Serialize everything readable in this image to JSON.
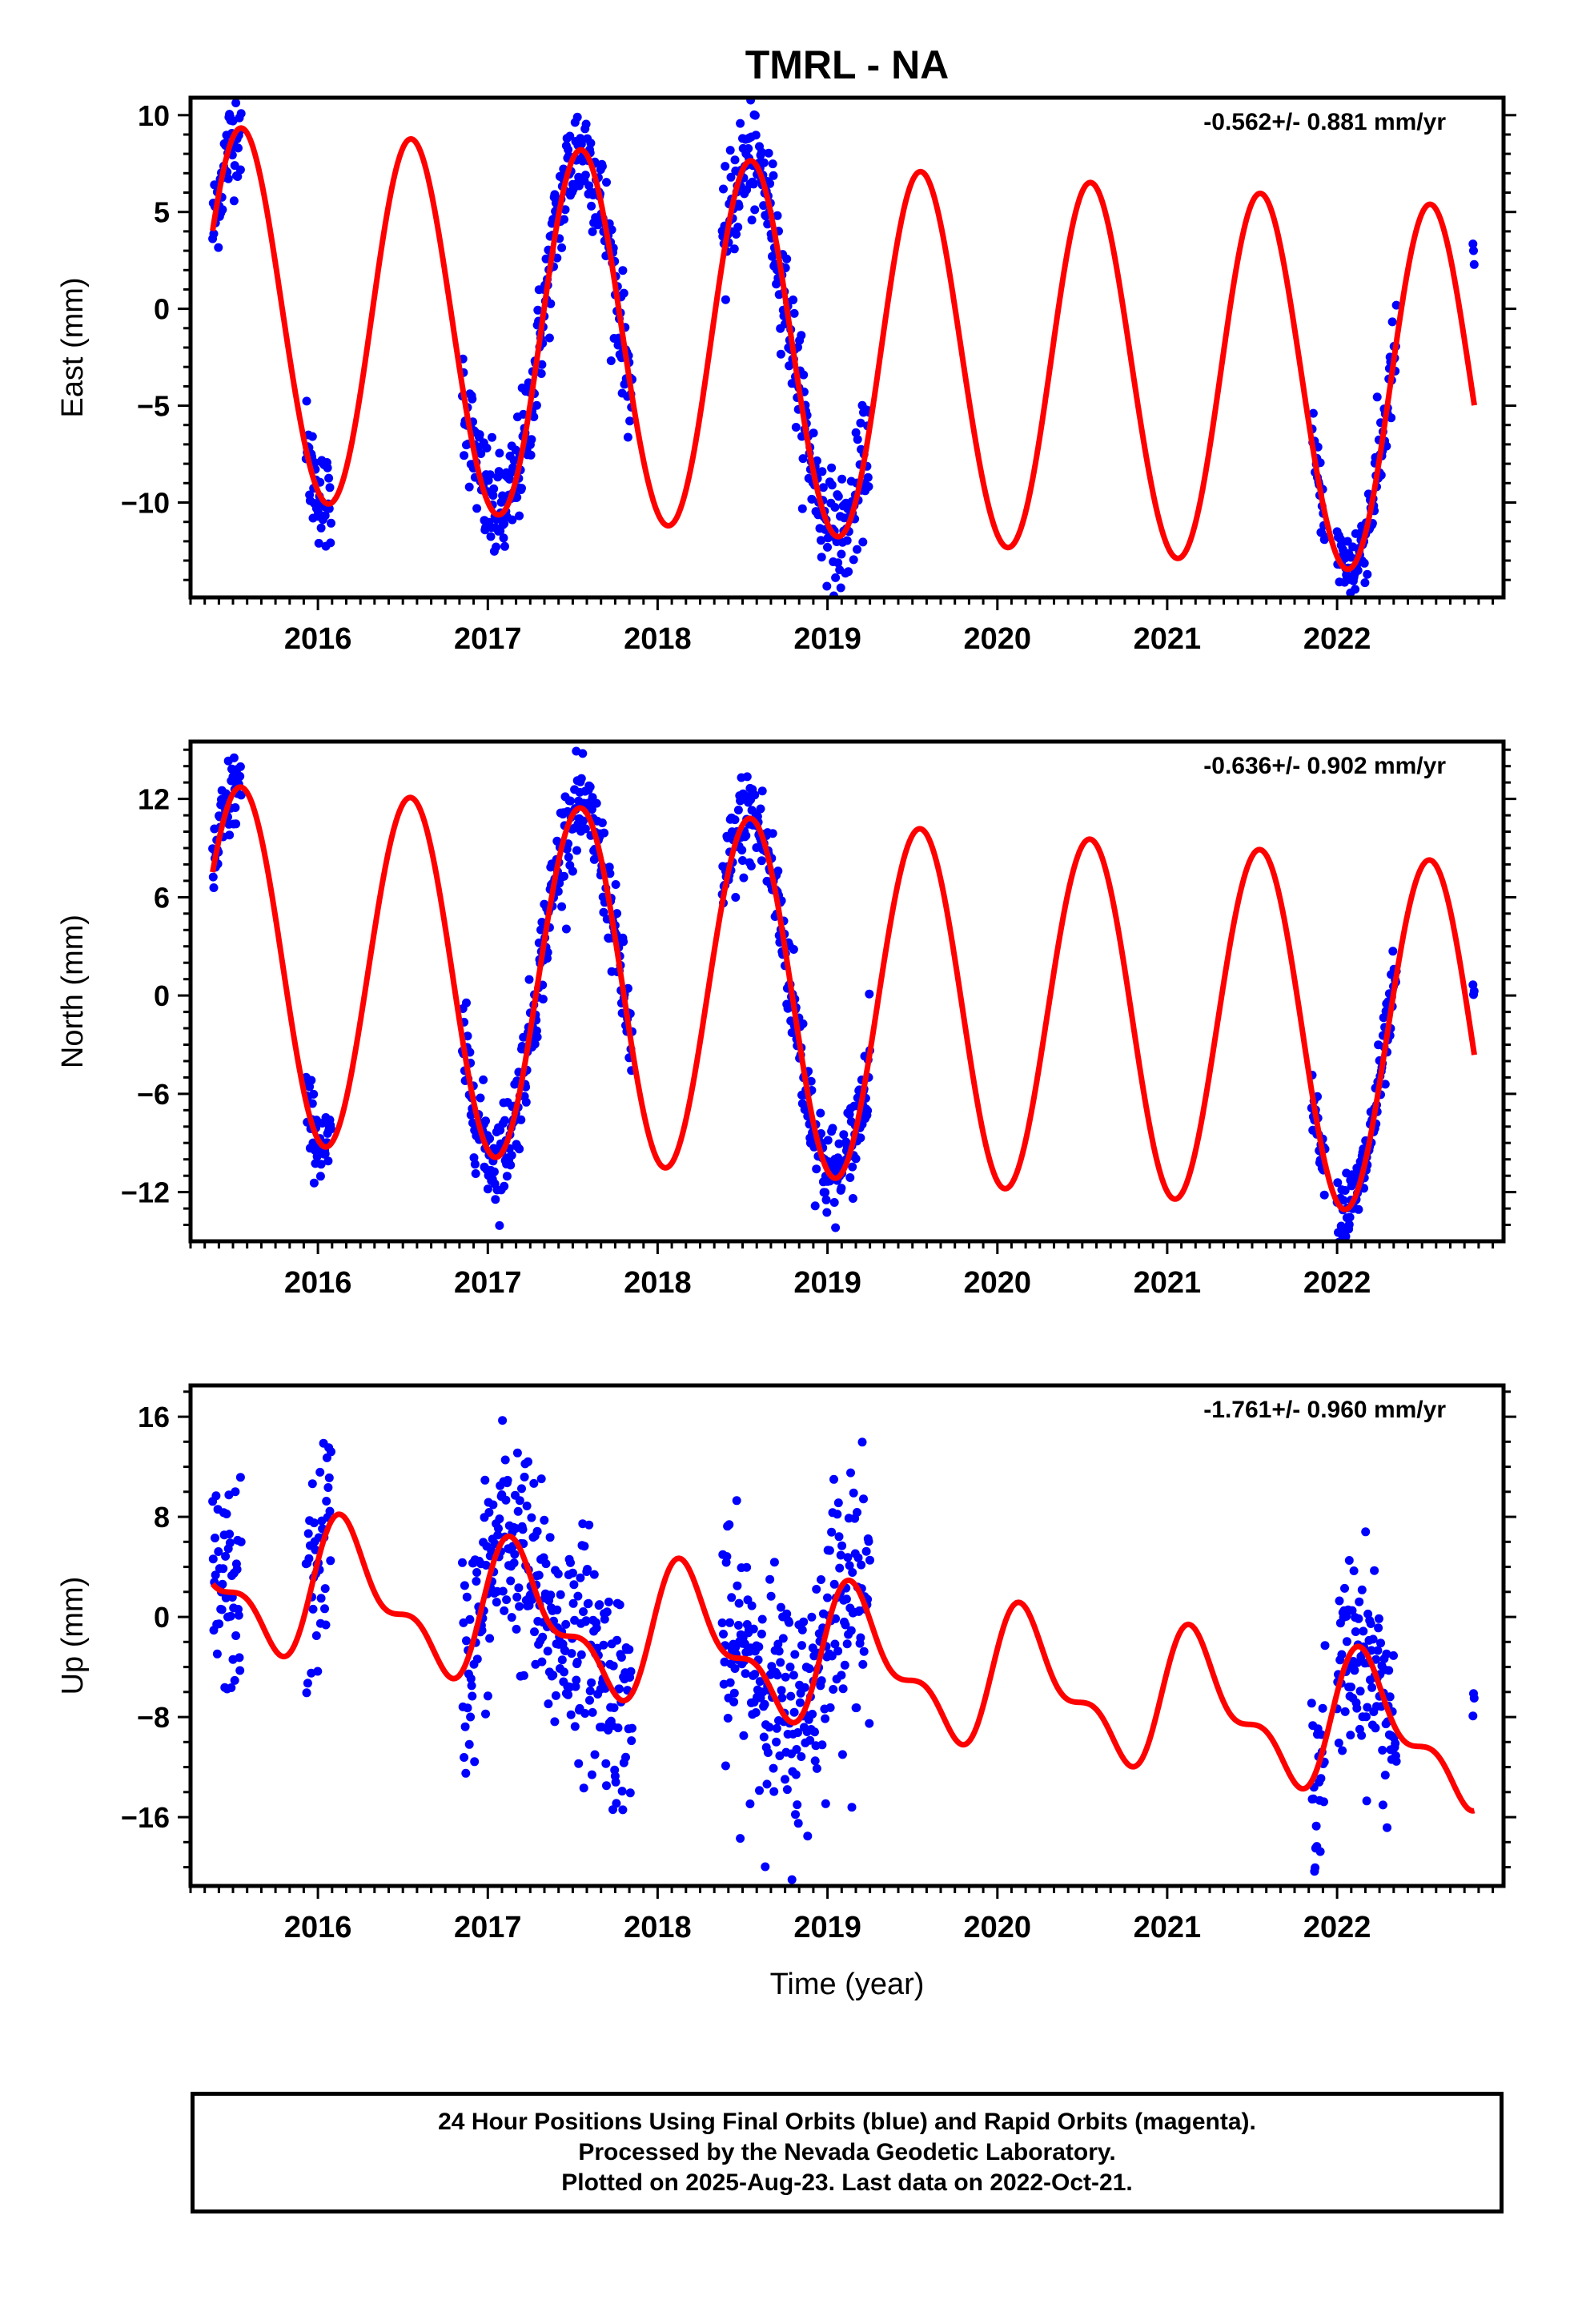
{
  "title": "TMRL - NA",
  "colors": {
    "data": "#0000ff",
    "model": "#ff0000",
    "axis": "#000000"
  },
  "x_ticks": [
    "2016",
    "2017",
    "2018",
    "2019",
    "2020",
    "2021",
    "2022"
  ],
  "xlabel": "Time (year)",
  "caption": [
    "24 Hour Positions Using Final Orbits (blue) and Rapid Orbits (magenta).",
    "Processed by the Nevada Geodetic Laboratory.",
    "Plotted on 2025-Aug-23. Last data on 2022-Oct-21."
  ],
  "chart_data": [
    {
      "type": "scatter",
      "component": "east",
      "ylabel": "East (mm)",
      "rate_label": "-0.562+/- 0.881 mm/yr",
      "xlim": [
        2015.25,
        2022.98
      ],
      "ylim": [
        -14.9,
        10.9
      ],
      "y_ticks": [
        10,
        5,
        0,
        -5,
        -10
      ],
      "y_minor_ticks": [
        9,
        8,
        7,
        6,
        4,
        3,
        2,
        1,
        -1,
        -2,
        -3,
        -4,
        -6,
        -7,
        -8,
        -9,
        -11,
        -12,
        -13,
        -14
      ],
      "model": {
        "offset": -2.4,
        "rate": -0.562,
        "t0": 2019.0,
        "annual_cos": -9.0,
        "annual_sin": -3.2,
        "semiannual_cos": 0.3,
        "semiannual_sin": 0.0,
        "t_start": 2015.38,
        "t_end": 2022.81
      },
      "data_segments": [
        {
          "t": [
            2015.38,
            2015.55
          ],
          "scatter": 1.3
        },
        {
          "t": [
            2015.93,
            2016.08
          ],
          "scatter": 1.3
        },
        {
          "t": [
            2016.85,
            2017.85
          ],
          "scatter": 1.5
        },
        {
          "t": [
            2018.38,
            2019.25
          ],
          "scatter": 1.5
        },
        {
          "t": [
            2021.85,
            2021.93
          ],
          "scatter": 1.0
        },
        {
          "t": [
            2022.0,
            2022.35
          ],
          "scatter": 1.2
        },
        {
          "t": [
            2022.8,
            2022.81
          ],
          "scatter": 0.3,
          "shift": 7.4
        }
      ]
    },
    {
      "type": "scatter",
      "component": "north",
      "ylabel": "North (mm)",
      "rate_label": "-0.636+/- 0.902 mm/yr",
      "xlim": [
        2015.25,
        2022.98
      ],
      "ylim": [
        -15,
        15.5
      ],
      "y_ticks": [
        12,
        6,
        0,
        -6,
        -12
      ],
      "y_minor_ticks": [
        15,
        14,
        13,
        11,
        10,
        9,
        8,
        7,
        5,
        4,
        3,
        2,
        1,
        -1,
        -2,
        -3,
        -4,
        -5,
        -7,
        -8,
        -9,
        -10,
        -11,
        -13,
        -14
      ],
      "model": {
        "offset": -0.3,
        "rate": -0.636,
        "t0": 2019.0,
        "annual_cos": -10.4,
        "annual_sin": -3.0,
        "semiannual_cos": 0.0,
        "semiannual_sin": 0.0,
        "t_start": 2015.38,
        "t_end": 2022.81
      },
      "data_segments": [
        {
          "t": [
            2015.38,
            2015.55
          ],
          "scatter": 1.4
        },
        {
          "t": [
            2015.93,
            2016.08
          ],
          "scatter": 1.2
        },
        {
          "t": [
            2016.85,
            2017.85
          ],
          "scatter": 1.5
        },
        {
          "t": [
            2018.38,
            2019.25
          ],
          "scatter": 1.6
        },
        {
          "t": [
            2021.85,
            2021.93
          ],
          "scatter": 0.8
        },
        {
          "t": [
            2022.0,
            2022.35
          ],
          "scatter": 1.2
        },
        {
          "t": [
            2022.8,
            2022.81
          ],
          "scatter": 0.3,
          "shift": 3.5
        }
      ]
    },
    {
      "type": "scatter",
      "component": "up",
      "ylabel": "Up (mm)",
      "rate_label": "-1.761+/- 0.960 mm/yr",
      "xlim": [
        2015.25,
        2022.98
      ],
      "ylim": [
        -21.5,
        18.5
      ],
      "y_ticks": [
        16,
        8,
        0,
        -8,
        -16
      ],
      "y_minor_ticks": [
        18,
        14,
        12,
        10,
        6,
        4,
        2,
        -2,
        -4,
        -6,
        -10,
        -12,
        -14,
        -18,
        -20
      ],
      "model": {
        "offset": -3.3,
        "rate": -1.761,
        "t0": 2019.0,
        "annual_cos": 1.7,
        "annual_sin": 4.3,
        "semiannual_cos": 0.8,
        "semiannual_sin": 2.2,
        "t_start": 2015.38,
        "t_end": 2022.81
      },
      "data_segments": [
        {
          "t": [
            2015.38,
            2015.55
          ],
          "scatter": 4.2
        },
        {
          "t": [
            2015.93,
            2016.08
          ],
          "scatter": 4.5
        },
        {
          "t": [
            2016.85,
            2017.85
          ],
          "scatter": 4.5
        },
        {
          "t": [
            2018.38,
            2019.25
          ],
          "scatter": 4.8
        },
        {
          "t": [
            2021.85,
            2021.93
          ],
          "scatter": 3.5
        },
        {
          "t": [
            2022.0,
            2022.35
          ],
          "scatter": 4.0
        },
        {
          "t": [
            2022.8,
            2022.81
          ],
          "scatter": 1.5,
          "shift": 7.0
        }
      ]
    }
  ]
}
